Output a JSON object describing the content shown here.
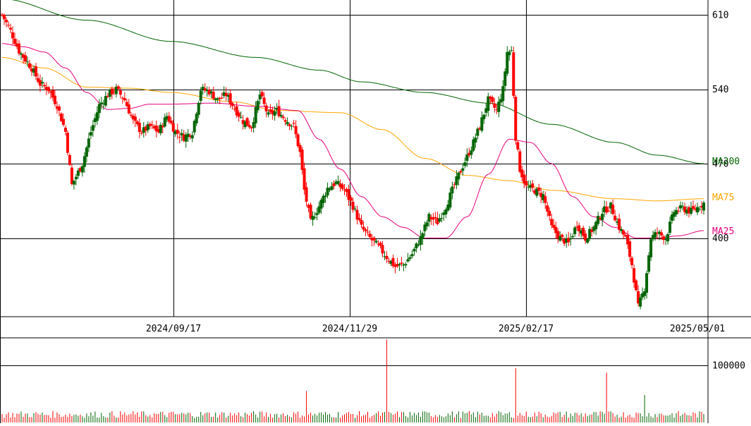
{
  "chart_data": {
    "type": "candlestick",
    "price_axis": {
      "ticks": [
        {
          "value": 610,
          "label": "610"
        },
        {
          "value": 540,
          "label": "540"
        },
        {
          "value": 470,
          "label": "470"
        },
        {
          "value": 400,
          "label": "400"
        }
      ],
      "ylim": [
        326,
        624
      ]
    },
    "date_axis": {
      "labels": [
        "2024/09/17",
        "2024/11/29",
        "2025/02/17",
        "2025/05/01"
      ]
    },
    "ma_legend": [
      {
        "label": "MA200",
        "color": "#006400"
      },
      {
        "label": "MA75",
        "color": "#FFA500"
      },
      {
        "label": "MA25",
        "color": "#E6007E"
      }
    ],
    "colors": {
      "up": "#006400",
      "down": "#FF0000",
      "grid": "#000000"
    },
    "volume_axis": {
      "ticks": [
        {
          "value": 100000,
          "label": "100000"
        }
      ],
      "ylim": [
        0,
        148000
      ]
    },
    "anchors": [
      {
        "i": 0,
        "c": 610
      },
      {
        "i": 4,
        "c": 595
      },
      {
        "i": 8,
        "c": 576
      },
      {
        "i": 14,
        "c": 560
      },
      {
        "i": 18,
        "c": 545
      },
      {
        "i": 22,
        "c": 540
      },
      {
        "i": 26,
        "c": 525
      },
      {
        "i": 30,
        "c": 500
      },
      {
        "i": 33,
        "c": 450
      },
      {
        "i": 38,
        "c": 470
      },
      {
        "i": 42,
        "c": 500
      },
      {
        "i": 46,
        "c": 525
      },
      {
        "i": 50,
        "c": 535
      },
      {
        "i": 54,
        "c": 540
      },
      {
        "i": 58,
        "c": 530
      },
      {
        "i": 62,
        "c": 510
      },
      {
        "i": 66,
        "c": 500
      },
      {
        "i": 70,
        "c": 505
      },
      {
        "i": 74,
        "c": 500
      },
      {
        "i": 78,
        "c": 515
      },
      {
        "i": 82,
        "c": 500
      },
      {
        "i": 86,
        "c": 495
      },
      {
        "i": 90,
        "c": 500
      },
      {
        "i": 94,
        "c": 540
      },
      {
        "i": 98,
        "c": 538
      },
      {
        "i": 102,
        "c": 530
      },
      {
        "i": 106,
        "c": 535
      },
      {
        "i": 110,
        "c": 522
      },
      {
        "i": 114,
        "c": 510
      },
      {
        "i": 118,
        "c": 505
      },
      {
        "i": 122,
        "c": 535
      },
      {
        "i": 126,
        "c": 515
      },
      {
        "i": 130,
        "c": 520
      },
      {
        "i": 134,
        "c": 512
      },
      {
        "i": 138,
        "c": 505
      },
      {
        "i": 141,
        "c": 480
      },
      {
        "i": 143,
        "c": 445
      },
      {
        "i": 146,
        "c": 415
      },
      {
        "i": 150,
        "c": 430
      },
      {
        "i": 154,
        "c": 447
      },
      {
        "i": 158,
        "c": 452
      },
      {
        "i": 162,
        "c": 445
      },
      {
        "i": 166,
        "c": 430
      },
      {
        "i": 170,
        "c": 410
      },
      {
        "i": 174,
        "c": 400
      },
      {
        "i": 178,
        "c": 392
      },
      {
        "i": 182,
        "c": 382
      },
      {
        "i": 186,
        "c": 373
      },
      {
        "i": 190,
        "c": 375
      },
      {
        "i": 194,
        "c": 385
      },
      {
        "i": 198,
        "c": 400
      },
      {
        "i": 202,
        "c": 420
      },
      {
        "i": 206,
        "c": 415
      },
      {
        "i": 210,
        "c": 430
      },
      {
        "i": 214,
        "c": 450
      },
      {
        "i": 218,
        "c": 468
      },
      {
        "i": 222,
        "c": 485
      },
      {
        "i": 226,
        "c": 505
      },
      {
        "i": 230,
        "c": 530
      },
      {
        "i": 234,
        "c": 520
      },
      {
        "i": 237,
        "c": 540
      },
      {
        "i": 239,
        "c": 575
      },
      {
        "i": 241,
        "c": 576
      },
      {
        "i": 243,
        "c": 495
      },
      {
        "i": 245,
        "c": 465
      },
      {
        "i": 248,
        "c": 448
      },
      {
        "i": 252,
        "c": 445
      },
      {
        "i": 256,
        "c": 440
      },
      {
        "i": 260,
        "c": 410
      },
      {
        "i": 264,
        "c": 400
      },
      {
        "i": 268,
        "c": 395
      },
      {
        "i": 272,
        "c": 413
      },
      {
        "i": 276,
        "c": 400
      },
      {
        "i": 280,
        "c": 410
      },
      {
        "i": 284,
        "c": 425
      },
      {
        "i": 288,
        "c": 430
      },
      {
        "i": 292,
        "c": 410
      },
      {
        "i": 295,
        "c": 400
      },
      {
        "i": 298,
        "c": 375
      },
      {
        "i": 301,
        "c": 335
      },
      {
        "i": 304,
        "c": 353
      },
      {
        "i": 307,
        "c": 400
      },
      {
        "i": 310,
        "c": 405
      },
      {
        "i": 314,
        "c": 400
      },
      {
        "i": 318,
        "c": 425
      },
      {
        "i": 322,
        "c": 428
      },
      {
        "i": 326,
        "c": 425
      },
      {
        "i": 330,
        "c": 430
      },
      {
        "i": 332,
        "c": 433
      }
    ],
    "ma200_curve": [
      [
        0,
        625
      ],
      [
        40,
        605
      ],
      [
        80,
        585
      ],
      [
        120,
        570
      ],
      [
        150,
        558
      ],
      [
        170,
        547
      ],
      [
        200,
        537
      ],
      [
        230,
        527
      ],
      [
        260,
        507
      ],
      [
        290,
        490
      ],
      [
        310,
        478
      ],
      [
        332,
        470
      ]
    ],
    "ma75_curve": [
      [
        0,
        570
      ],
      [
        20,
        560
      ],
      [
        40,
        542
      ],
      [
        60,
        541
      ],
      [
        80,
        537
      ],
      [
        110,
        528
      ],
      [
        130,
        520
      ],
      [
        160,
        518
      ],
      [
        180,
        502
      ],
      [
        200,
        475
      ],
      [
        220,
        459
      ],
      [
        240,
        454
      ],
      [
        260,
        445
      ],
      [
        290,
        437
      ],
      [
        310,
        435
      ],
      [
        332,
        437
      ]
    ],
    "ma25_curve": [
      [
        0,
        583
      ],
      [
        10,
        580
      ],
      [
        20,
        575
      ],
      [
        30,
        560
      ],
      [
        40,
        537
      ],
      [
        50,
        521
      ],
      [
        60,
        522
      ],
      [
        70,
        526
      ],
      [
        80,
        526
      ],
      [
        100,
        527
      ],
      [
        120,
        524
      ],
      [
        140,
        520
      ],
      [
        150,
        493
      ],
      [
        160,
        465
      ],
      [
        170,
        439
      ],
      [
        180,
        420
      ],
      [
        190,
        410
      ],
      [
        200,
        400
      ],
      [
        210,
        400
      ],
      [
        220,
        420
      ],
      [
        230,
        460
      ],
      [
        240,
        493
      ],
      [
        250,
        490
      ],
      [
        260,
        470
      ],
      [
        270,
        439
      ],
      [
        280,
        420
      ],
      [
        290,
        410
      ],
      [
        300,
        400
      ],
      [
        310,
        400
      ],
      [
        320,
        402
      ],
      [
        332,
        407
      ]
    ],
    "volume_bars": [
      {
        "i": 182,
        "v": 145000
      },
      {
        "i": 243,
        "v": 95000
      },
      {
        "i": 286,
        "v": 87000
      },
      {
        "i": 144,
        "v": 55000
      },
      {
        "i": 304,
        "v": 48000
      }
    ]
  }
}
